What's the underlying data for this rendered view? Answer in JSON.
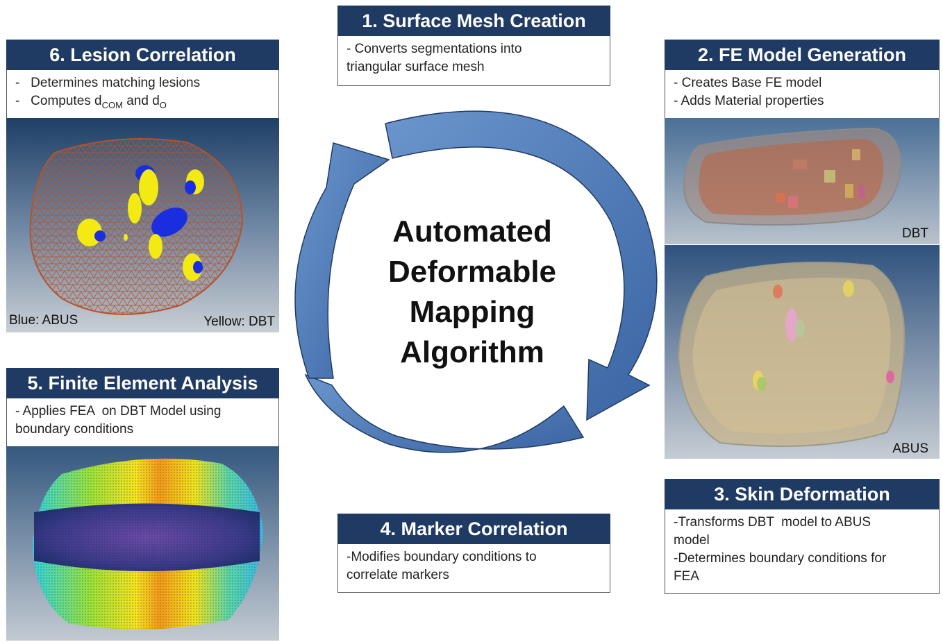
{
  "center": {
    "lines": [
      "Automated",
      "Deformable",
      "Mapping",
      "Algorithm"
    ]
  },
  "steps": {
    "s1": {
      "title": "1. Surface Mesh Creation",
      "lines": [
        "- Converts segmentations into",
        "triangular surface mesh"
      ]
    },
    "s2": {
      "title": "2. FE Model Generation",
      "lines": [
        "- Creates Base FE model",
        "- Adds Material properties"
      ]
    },
    "s3": {
      "title": "3. Skin Deformation",
      "lines": [
        "-Transforms DBT  model to ABUS",
        "model",
        "-Determines boundary conditions for",
        "FEA"
      ]
    },
    "s4": {
      "title": "4. Marker Correlation",
      "lines": [
        "-Modifies boundary conditions to",
        "correlate markers"
      ]
    },
    "s5": {
      "title": "5. Finite Element Analysis",
      "lines": [
        "- Applies FEA  on DBT Model using",
        "boundary conditions"
      ]
    },
    "s6": {
      "title": "6. Lesion Correlation",
      "line1": "-   Determines matching lesions",
      "line2_prefix": "-   Computes d",
      "line2_sub1": "COM",
      "line2_mid": " and d",
      "line2_sub2": "O"
    }
  },
  "captions": {
    "blue": "Blue: ABUS",
    "yellow": "Yellow: DBT",
    "dbt": "DBT",
    "abus": "ABUS"
  },
  "colors": {
    "header_bg": "#1f3a63",
    "arrow": "#4a76b3",
    "mesh": "#b5532a",
    "lesion_blue": "#1a2ee0",
    "lesion_yellow": "#f2ea12"
  }
}
